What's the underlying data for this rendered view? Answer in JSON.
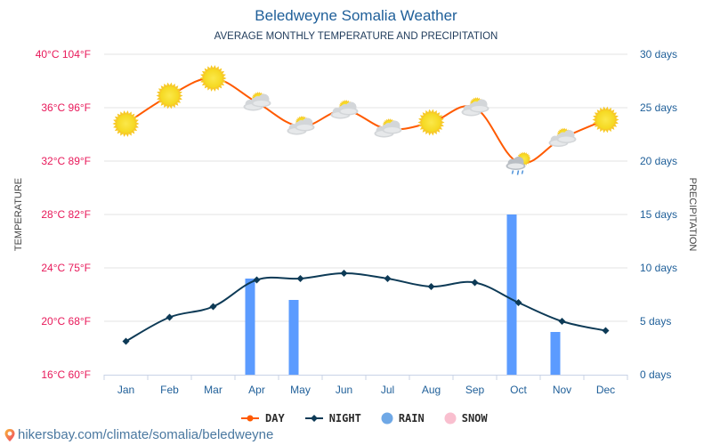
{
  "header": {
    "title": "Beledweyne Somalia Weather",
    "subtitle": "AVERAGE MONTHLY TEMPERATURE AND PRECIPITATION"
  },
  "footer": {
    "link": "hikersbay.com/climate/somalia/beledweyne",
    "icon": "map-pin-icon"
  },
  "legend": [
    {
      "label": "DAY",
      "color": "#ff5a00"
    },
    {
      "label": "NIGHT",
      "color": "#0d3a56"
    },
    {
      "label": "RAIN",
      "color": "#6fa8e6"
    },
    {
      "label": "SNOW",
      "color": "#f9bfcf"
    }
  ],
  "chart_data": {
    "type": "line",
    "title": "Beledweyne Somalia Weather",
    "subtitle": "AVERAGE MONTHLY TEMPERATURE AND PRECIPITATION",
    "categories": [
      "Jan",
      "Feb",
      "Mar",
      "Apr",
      "May",
      "Jun",
      "Jul",
      "Aug",
      "Sep",
      "Oct",
      "Nov",
      "Dec"
    ],
    "ylabel_left": "TEMPERATURE",
    "ylabel_right": "PRECIPITATION",
    "ylim_left": [
      16,
      40
    ],
    "ylim_right": [
      0,
      30
    ],
    "left_ticks": [
      {
        "value": 40,
        "label": "40°C 104°F"
      },
      {
        "value": 36,
        "label": "36°C 96°F"
      },
      {
        "value": 32,
        "label": "32°C 89°F"
      },
      {
        "value": 28,
        "label": "28°C 82°F"
      },
      {
        "value": 24,
        "label": "24°C 75°F"
      },
      {
        "value": 20,
        "label": "20°C 68°F"
      },
      {
        "value": 16,
        "label": "16°C 60°F"
      }
    ],
    "right_ticks": [
      {
        "value": 30,
        "label": "30 days"
      },
      {
        "value": 25,
        "label": "25 days"
      },
      {
        "value": 20,
        "label": "20 days"
      },
      {
        "value": 15,
        "label": "15 days"
      },
      {
        "value": 10,
        "label": "10 days"
      },
      {
        "value": 5,
        "label": "5 days"
      },
      {
        "value": 0,
        "label": "0 days"
      }
    ],
    "grid": true,
    "legend_position": "bottom",
    "series": [
      {
        "name": "DAY",
        "type": "line",
        "axis": "left",
        "color": "#ff5a00",
        "values": [
          34.8,
          36.9,
          38.2,
          36.4,
          34.6,
          35.8,
          34.4,
          34.9,
          36.0,
          31.9,
          33.7,
          35.1
        ],
        "icons": [
          "sun",
          "sun",
          "sun",
          "partly-cloudy",
          "partly-cloudy",
          "partly-cloudy",
          "partly-cloudy",
          "sun",
          "partly-cloudy",
          "rain-cloud",
          "partly-cloudy",
          "sun"
        ]
      },
      {
        "name": "NIGHT",
        "type": "line",
        "axis": "left",
        "color": "#0d3a56",
        "values": [
          18.5,
          20.3,
          21.1,
          23.1,
          23.2,
          23.6,
          23.2,
          22.6,
          22.9,
          21.4,
          20.0,
          19.3
        ]
      },
      {
        "name": "RAIN",
        "type": "bar",
        "axis": "right",
        "color": "#5b9bff",
        "values": [
          0,
          0,
          0,
          9,
          7,
          0,
          0,
          0,
          0,
          15,
          4,
          0
        ]
      },
      {
        "name": "SNOW",
        "type": "bar",
        "axis": "right",
        "color": "#f9bfcf",
        "values": [
          0,
          0,
          0,
          0,
          0,
          0,
          0,
          0,
          0,
          0,
          0,
          0
        ]
      }
    ]
  }
}
